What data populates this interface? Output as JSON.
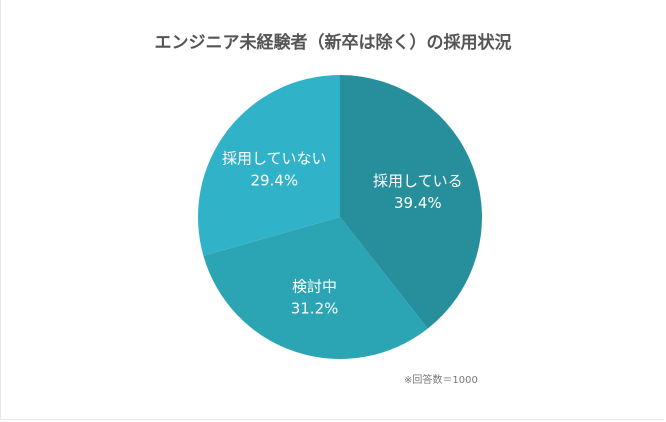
{
  "chart_data": {
    "type": "pie",
    "title": "エンジニア未経験者（新卒は除く）の採用状況",
    "slices": [
      {
        "label": "採用している",
        "value": 39.4,
        "value_label": "39.4%",
        "color": "#278f9c"
      },
      {
        "label": "検討中",
        "value": 31.2,
        "value_label": "31.2%",
        "color": "#2ba4b4"
      },
      {
        "label": "採用していない",
        "value": 29.4,
        "value_label": "29.4%",
        "color": "#30b3c8"
      }
    ],
    "start": "12 o'clock",
    "direction": "clockwise",
    "legend": "none",
    "label_color": "#ffffff"
  },
  "note": "※回答数＝1000"
}
